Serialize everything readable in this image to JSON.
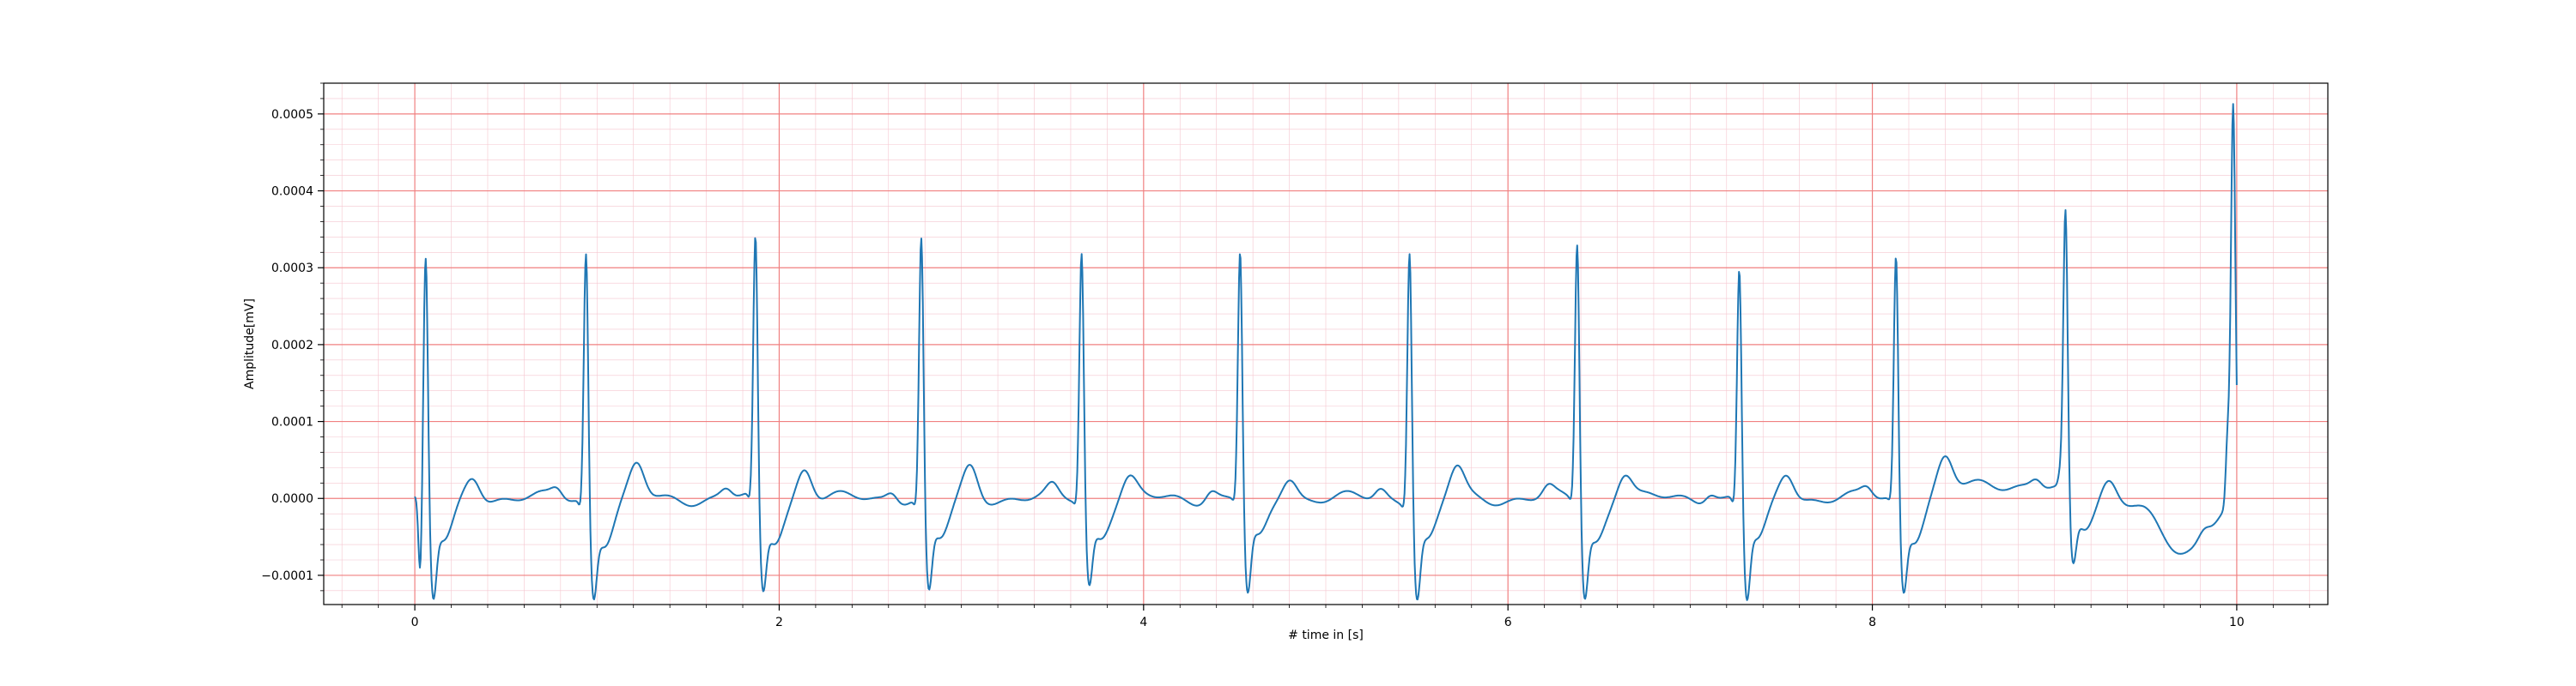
{
  "chart_data": {
    "type": "line",
    "title": "",
    "xlabel": "# time in [s]",
    "ylabel": "Amplitude[mV]",
    "xlim": [
      -0.5,
      10.5
    ],
    "ylim": [
      -0.000138,
      0.00054
    ],
    "x_ticks": [
      0,
      2,
      4,
      6,
      8,
      10
    ],
    "x_tick_labels": [
      "0",
      "2",
      "4",
      "6",
      "8",
      "10"
    ],
    "y_ticks": [
      -0.0001,
      0.0,
      0.0001,
      0.0002,
      0.0003,
      0.0004,
      0.0005
    ],
    "y_tick_labels": [
      "−0.0001",
      "0.0000",
      "0.0001",
      "0.0002",
      "0.0003",
      "0.0004",
      "0.0005"
    ],
    "grid": true,
    "grid_major_color": "#f08080",
    "grid_minor_color": "#f5c6cf",
    "line_color": "#1f77b4",
    "series": [
      {
        "peaks": [
          {
            "t": 0.06,
            "r": 0.000325,
            "q": -0.000105,
            "s": -0.000105
          },
          {
            "t": 0.94,
            "r": 0.000335,
            "q": -1e-05,
            "s": -0.0001
          },
          {
            "t": 1.87,
            "r": 0.000348,
            "q": -1e-05,
            "s": -9.8e-05
          },
          {
            "t": 2.78,
            "r": 0.00035,
            "q": -1e-05,
            "s": -9.8e-05
          },
          {
            "t": 3.66,
            "r": 0.000335,
            "q": -5e-06,
            "s": -8.8e-05
          },
          {
            "t": 4.53,
            "r": 0.000335,
            "q": -5e-06,
            "s": -0.0001
          },
          {
            "t": 5.46,
            "r": 0.000343,
            "q": -5e-06,
            "s": -0.0001
          },
          {
            "t": 6.38,
            "r": 0.000348,
            "q": -5e-06,
            "s": -0.0001
          },
          {
            "t": 7.27,
            "r": 0.000312,
            "q": -1e-05,
            "s": -0.000105
          },
          {
            "t": 8.13,
            "r": 0.000328,
            "q": -5e-06,
            "s": -9.5e-05
          },
          {
            "t": 9.06,
            "r": 0.00037,
            "q": 1.5e-05,
            "s": -7.5e-05
          },
          {
            "t": 9.98,
            "r": 0.00051,
            "q": 8.5e-05,
            "s": 3e-05
          }
        ],
        "t_waves": [
          {
            "t": 0.32,
            "amp": 3e-05
          },
          {
            "t": 1.22,
            "amp": 4e-05
          },
          {
            "t": 2.14,
            "amp": 4e-05
          },
          {
            "t": 3.05,
            "amp": 4e-05
          },
          {
            "t": 3.92,
            "amp": 2.5e-05
          },
          {
            "t": 4.8,
            "amp": 3e-05
          },
          {
            "t": 5.72,
            "amp": 4e-05
          },
          {
            "t": 6.64,
            "amp": 3.5e-05
          },
          {
            "t": 7.53,
            "amp": 3.5e-05
          },
          {
            "t": 8.4,
            "amp": 4e-05
          },
          {
            "t": 9.3,
            "amp": 2.5e-05
          }
        ]
      }
    ]
  }
}
